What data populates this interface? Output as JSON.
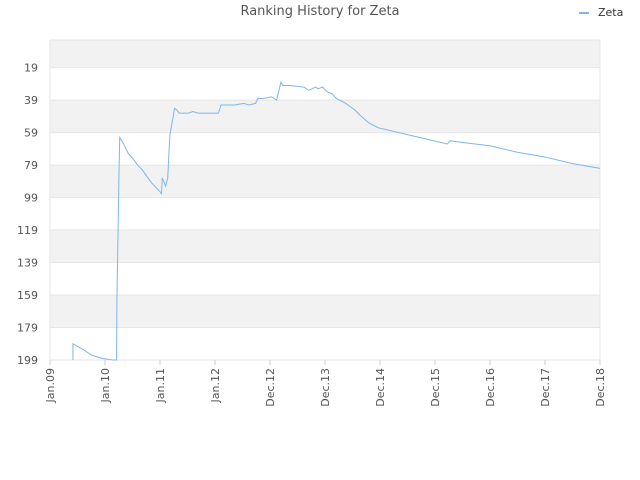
{
  "chart_data": {
    "type": "line",
    "title": "Ranking History for Zeta",
    "xlabel": "",
    "ylabel": "",
    "y_axis_inverted": true,
    "ylim": [
      199,
      2
    ],
    "xlim": [
      "2009-01-01",
      "2018-12-01"
    ],
    "y_ticks": [
      "19",
      "39",
      "59",
      "79",
      "99",
      "119",
      "139",
      "159",
      "179",
      "199"
    ],
    "x_ticks": [
      "Jan.09",
      "Jan.10",
      "Jan.11",
      "Jan.12",
      "Dec.12",
      "Dec.13",
      "Dec.14",
      "Dec.15",
      "Dec.16",
      "Dec.17",
      "Dec.18"
    ],
    "grid": true,
    "legend_position": "top-right",
    "colors": {
      "line": "#7fb6ea",
      "band": "#f2f2f2",
      "grid": "#e6e6e6"
    },
    "series": [
      {
        "name": "Zeta",
        "points": [
          [
            "2009-06-01",
            199
          ],
          [
            "2009-06-01",
            189
          ],
          [
            "2009-06-20",
            190
          ],
          [
            "2009-08-15",
            193
          ],
          [
            "2009-10-01",
            196
          ],
          [
            "2009-12-10",
            198
          ],
          [
            "2010-02-20",
            199
          ],
          [
            "2010-03-15",
            199
          ],
          [
            "2010-03-18",
            160
          ],
          [
            "2010-03-25",
            120
          ],
          [
            "2010-04-01",
            80
          ],
          [
            "2010-04-05",
            62
          ],
          [
            "2010-05-01",
            66
          ],
          [
            "2010-06-01",
            72
          ],
          [
            "2010-07-01",
            75
          ],
          [
            "2010-08-01",
            79
          ],
          [
            "2010-09-01",
            82
          ],
          [
            "2010-10-01",
            86
          ],
          [
            "2010-11-01",
            90
          ],
          [
            "2010-12-01",
            93
          ],
          [
            "2011-01-01",
            96
          ],
          [
            "2011-01-05",
            97
          ],
          [
            "2011-01-10",
            87
          ],
          [
            "2011-01-20",
            89
          ],
          [
            "2011-02-01",
            92
          ],
          [
            "2011-02-15",
            87
          ],
          [
            "2011-02-25",
            68
          ],
          [
            "2011-03-01",
            61
          ],
          [
            "2011-04-01",
            44
          ],
          [
            "2011-04-15",
            45
          ],
          [
            "2011-05-01",
            47
          ],
          [
            "2011-07-01",
            47
          ],
          [
            "2011-08-01",
            46
          ],
          [
            "2011-09-01",
            47
          ],
          [
            "2012-01-15",
            47
          ],
          [
            "2012-02-01",
            42
          ],
          [
            "2012-03-01",
            42
          ],
          [
            "2012-05-01",
            42
          ],
          [
            "2012-07-01",
            41
          ],
          [
            "2012-08-01",
            42
          ],
          [
            "2012-09-15",
            41
          ],
          [
            "2012-10-01",
            38
          ],
          [
            "2012-11-01",
            38
          ],
          [
            "2013-01-01",
            37
          ],
          [
            "2013-02-01",
            39
          ],
          [
            "2013-03-01",
            28
          ],
          [
            "2013-03-15",
            30
          ],
          [
            "2013-05-01",
            30
          ],
          [
            "2013-08-01",
            31
          ],
          [
            "2013-09-01",
            33
          ],
          [
            "2013-10-15",
            31
          ],
          [
            "2013-11-01",
            32
          ],
          [
            "2013-12-01",
            31
          ],
          [
            "2014-01-01",
            34
          ],
          [
            "2014-02-01",
            35
          ],
          [
            "2014-03-01",
            38
          ],
          [
            "2014-05-01",
            41
          ],
          [
            "2014-07-01",
            45
          ],
          [
            "2014-08-01",
            48
          ],
          [
            "2014-10-01",
            53
          ],
          [
            "2014-12-01",
            56
          ],
          [
            "2015-06-01",
            60
          ],
          [
            "2015-12-01",
            64
          ],
          [
            "2016-03-01",
            66
          ],
          [
            "2016-03-20",
            64
          ],
          [
            "2016-06-01",
            65
          ],
          [
            "2016-12-01",
            67
          ],
          [
            "2017-06-01",
            71
          ],
          [
            "2017-12-01",
            74
          ],
          [
            "2018-06-01",
            78
          ],
          [
            "2018-12-01",
            81
          ]
        ]
      }
    ]
  }
}
